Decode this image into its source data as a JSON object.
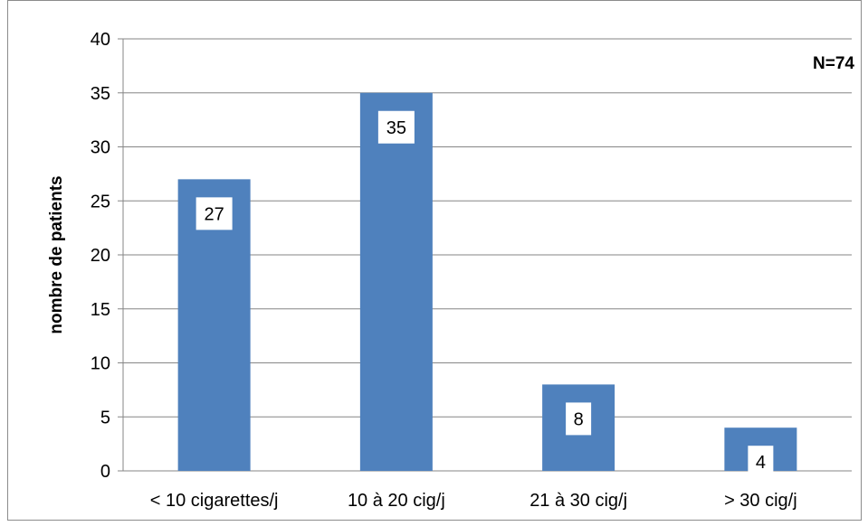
{
  "chart_data": {
    "type": "bar",
    "categories": [
      "< 10 cigarettes/j",
      "10 à 20 cig/j",
      "21 à 30 cig/j",
      "> 30 cig/j"
    ],
    "values": [
      27,
      35,
      8,
      4
    ],
    "ylabel": "nombre de patients",
    "xlabel": "",
    "ylim": [
      0,
      40
    ],
    "yticks": [
      0,
      5,
      10,
      15,
      20,
      25,
      30,
      35,
      40
    ],
    "annotation": "N=74",
    "grid": true,
    "legend": "none",
    "bar_color": "#4f81bd",
    "gridline_color": "#868686"
  }
}
